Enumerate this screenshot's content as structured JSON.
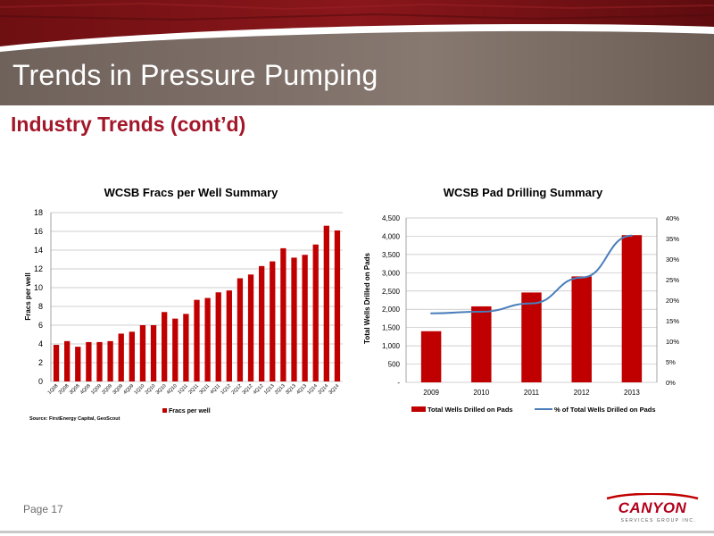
{
  "slide": {
    "title": "Trends in Pressure Pumping",
    "subtitle": "Industry Trends (cont’d)",
    "page": "Page 17",
    "logo": {
      "name": "CANYON",
      "tagline": "SERVICES GROUP INC."
    },
    "colors": {
      "accent": "#a3172a",
      "bar": "#c00000",
      "line": "#4a7ebb",
      "banner": "#7a6a62"
    }
  },
  "chart_data": [
    {
      "type": "bar",
      "title": "WCSB Fracs per Well Summary",
      "ylabel": "Fracs per well",
      "xlabel": "",
      "categories": [
        "1Q08",
        "2Q08",
        "3Q08",
        "4Q08",
        "1Q09",
        "2Q09",
        "3Q09",
        "4Q09",
        "1Q10",
        "2Q10",
        "3Q10",
        "4Q10",
        "1Q11",
        "2Q11",
        "3Q11",
        "4Q11",
        "1Q12",
        "2Q12",
        "3Q12",
        "4Q12",
        "1Q13",
        "2Q13",
        "3Q13",
        "4Q13",
        "1Q14",
        "2Q14",
        "3Q14"
      ],
      "series": [
        {
          "name": "Fracs per well",
          "values": [
            3.9,
            4.3,
            3.7,
            4.2,
            4.2,
            4.3,
            5.1,
            5.3,
            6.0,
            6.0,
            7.4,
            6.7,
            7.2,
            8.7,
            8.9,
            9.5,
            9.7,
            11.0,
            11.4,
            12.3,
            12.8,
            14.2,
            13.2,
            13.5,
            14.6,
            16.6,
            16.1
          ]
        }
      ],
      "ylim": [
        0,
        18
      ],
      "yticks": [
        0,
        2,
        4,
        6,
        8,
        10,
        12,
        14,
        16,
        18
      ],
      "grid": true,
      "legend": "bottom",
      "source": "Source: FirstEnergy Capital, GeoScout"
    },
    {
      "type": "bar",
      "title": "WCSB Pad Drilling Summary",
      "ylabel": "Total Wells Drilled on Pads",
      "xlabel": "",
      "categories": [
        "2009",
        "2010",
        "2011",
        "2012",
        "2013"
      ],
      "series": [
        {
          "name": "Total Wells Drilled on Pads",
          "type": "bar",
          "axis": "left",
          "values": [
            1400,
            2080,
            2460,
            2900,
            4030
          ]
        },
        {
          "name": "% of Total Wells Drilled on Pads",
          "type": "line",
          "axis": "right",
          "values": [
            16.8,
            17.2,
            19.2,
            25.5,
            35.7
          ]
        }
      ],
      "ylim": [
        0,
        4500
      ],
      "yticks": [
        "-",
        "500",
        "1,000",
        "1,500",
        "2,000",
        "2,500",
        "3,000",
        "3,500",
        "4,000",
        "4,500"
      ],
      "y2lim": [
        0,
        40
      ],
      "y2ticks": [
        "0%",
        "5%",
        "10%",
        "15%",
        "20%",
        "25%",
        "30%",
        "35%",
        "40%"
      ],
      "grid": true,
      "legend": "bottom"
    }
  ]
}
